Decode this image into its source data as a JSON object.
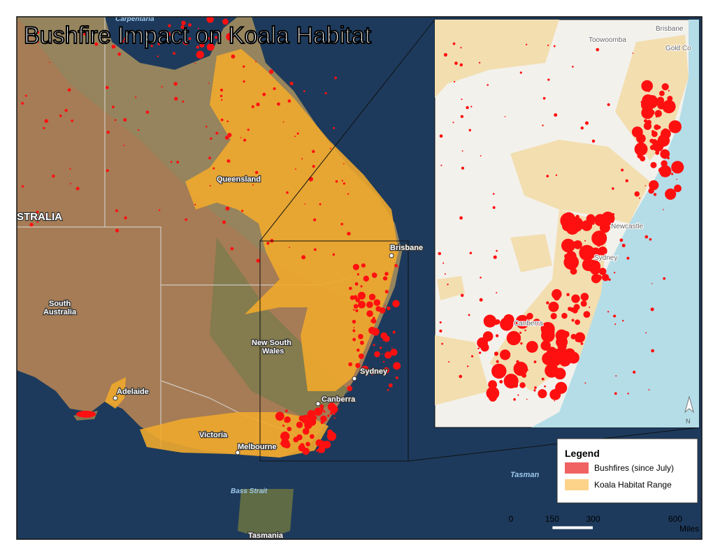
{
  "title": "Bushfire Impact on Koala Habitat",
  "map_labels": {
    "gulf": "Carpentaria",
    "queensland": "Queensland",
    "australia": "STRALIA",
    "south_australia": [
      "South",
      "Australia"
    ],
    "nsw": [
      "New South",
      "Wales"
    ],
    "brisbane": "Brisbane",
    "sydney": "Sydney",
    "canberra": "Canberra",
    "adelaide": "Adelaide",
    "victoria": "Victoria",
    "melbourne": "Melbourne",
    "bass_strait": "Bass Strait",
    "tasmania": "Tasmania",
    "tasman": "Tasman"
  },
  "inset_labels": {
    "brisbane": "Brisbane",
    "toowoomba": "Toowoomba",
    "gold_coast": "Gold Co",
    "newcastle": "Newcastle",
    "sydney": "Sydney",
    "canberra": "Canberra",
    "north": "N"
  },
  "legend": {
    "title": "Legend",
    "items": [
      {
        "label": "Bushfires (since July)",
        "color": "#f06262"
      },
      {
        "label": "Koala Habitat Range",
        "color": "#fdd38a"
      }
    ]
  },
  "scale_bar": {
    "ticks": [
      0,
      150,
      300,
      600
    ],
    "unit": "Miles"
  }
}
